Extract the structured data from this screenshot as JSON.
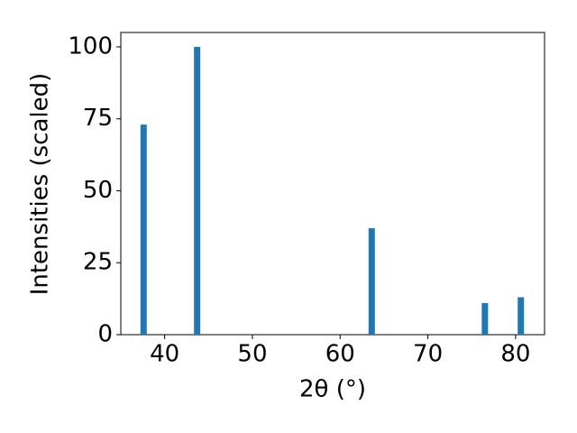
{
  "chart_data": {
    "type": "bar",
    "x_label": "2θ (°)",
    "y_label": "Intensities (scaled)",
    "x": [
      37.6,
      43.7,
      63.6,
      76.5,
      80.6
    ],
    "values": [
      73,
      100,
      37,
      11,
      13
    ],
    "color": "#1f77b4",
    "xlim": [
      35,
      83.3
    ],
    "xticks": [
      40,
      50,
      60,
      70,
      80
    ],
    "ylim": [
      0,
      105
    ],
    "yticks": [
      0,
      25,
      50,
      75,
      100
    ]
  }
}
